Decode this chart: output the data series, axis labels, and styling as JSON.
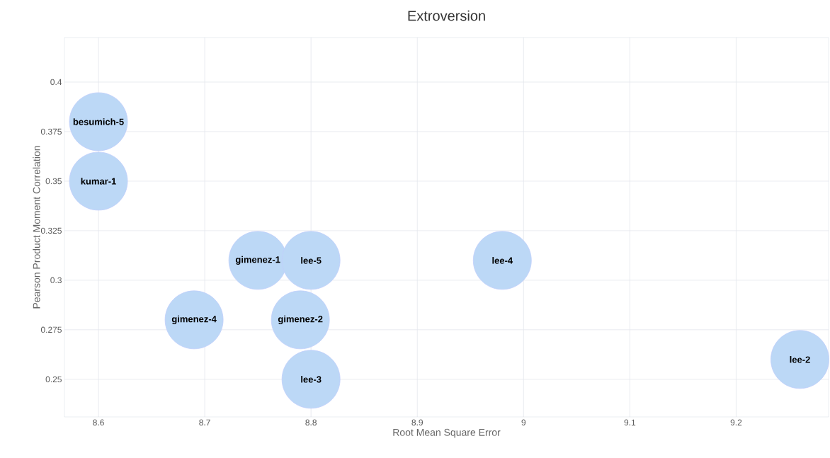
{
  "chart_data": {
    "type": "bubble",
    "title": "Extroversion",
    "xlabel": "Root Mean Square Error",
    "ylabel": "Pearson Product Moment Correlation",
    "x": [
      8.6,
      8.6,
      8.75,
      8.8,
      8.98,
      8.69,
      8.79,
      8.8,
      9.26
    ],
    "values": [
      0.38,
      0.35,
      0.31,
      0.31,
      0.31,
      0.28,
      0.28,
      0.25,
      0.26
    ],
    "sizes": [
      1,
      1,
      1,
      1,
      1,
      1,
      1,
      1,
      1
    ],
    "color": "#bcd8f6",
    "annotations": [
      {
        "text": "besumich-5",
        "x": 8.6,
        "y": 0.38
      },
      {
        "text": "kumar-1",
        "x": 8.6,
        "y": 0.35
      },
      {
        "text": "gimenez-1",
        "x": 8.75,
        "y": 0.31
      },
      {
        "text": "lee-5",
        "x": 8.8,
        "y": 0.31
      },
      {
        "text": "lee-4",
        "x": 8.98,
        "y": 0.31
      },
      {
        "text": "gimenez-4",
        "x": 8.69,
        "y": 0.28
      },
      {
        "text": "gimenez-2",
        "x": 8.79,
        "y": 0.28
      },
      {
        "text": "lee-3",
        "x": 8.8,
        "y": 0.25
      },
      {
        "text": "lee-2",
        "x": 9.26,
        "y": 0.26
      }
    ],
    "xlim": [
      8.568,
      9.287
    ],
    "ylim": [
      0.231,
      0.4225
    ],
    "xticks": [
      8.6,
      8.7,
      8.8,
      8.9,
      9,
      9.1,
      9.2
    ],
    "yticks": [
      0.25,
      0.275,
      0.3,
      0.325,
      0.35,
      0.375,
      0.4
    ],
    "grid": true
  }
}
